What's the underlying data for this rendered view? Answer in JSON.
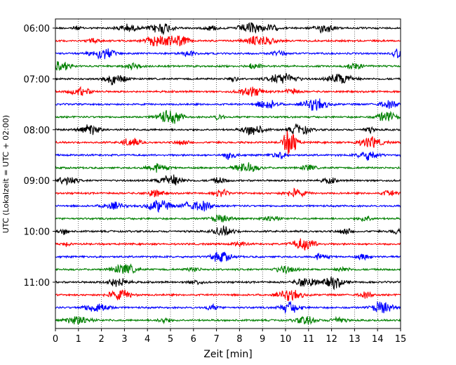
{
  "chart_data": {
    "type": "line",
    "title": "",
    "xlabel": "Zeit  [min]",
    "ylabel": "UTC (Lokalzeit = UTC + 02:00)",
    "xlim": [
      0,
      15
    ],
    "x_ticks": [
      0,
      1,
      2,
      3,
      4,
      5,
      6,
      7,
      8,
      9,
      10,
      11,
      12,
      13,
      14,
      15
    ],
    "x_tick_labels": [
      "0",
      "1",
      "2",
      "3",
      "4",
      "5",
      "6",
      "7",
      "8",
      "9",
      "10",
      "11",
      "12",
      "13",
      "14",
      "15"
    ],
    "y_tick_labels": [
      "06:00",
      "07:00",
      "08:00",
      "09:00",
      "10:00",
      "11:00"
    ],
    "row_minutes": 15,
    "grid": {
      "x": true,
      "style": "dotted"
    },
    "legend": "none",
    "colors": [
      "#000000",
      "#ff0000",
      "#0000ff",
      "#008000"
    ],
    "series": [
      {
        "start": "06:00",
        "bursts": [
          [
            0.9,
            0.15,
            0.3
          ],
          [
            3.1,
            0.3,
            0.6
          ],
          [
            4.6,
            0.35,
            1.0
          ],
          [
            6.8,
            0.2,
            0.4
          ],
          [
            8.5,
            0.35,
            1.0
          ],
          [
            9.4,
            0.2,
            0.5
          ],
          [
            11.7,
            0.25,
            0.8
          ]
        ]
      },
      {
        "start": "06:15",
        "bursts": [
          [
            4.5,
            0.4,
            1.0
          ],
          [
            5.4,
            0.25,
            0.9
          ],
          [
            8.9,
            0.4,
            0.9
          ],
          [
            1.7,
            0.2,
            0.4
          ]
        ]
      },
      {
        "start": "06:30",
        "bursts": [
          [
            2.0,
            0.35,
            1.0
          ],
          [
            5.8,
            0.2,
            0.5
          ],
          [
            9.7,
            0.2,
            0.4
          ],
          [
            14.9,
            0.15,
            0.8
          ]
        ]
      },
      {
        "start": "06:45",
        "bursts": [
          [
            0.2,
            0.3,
            0.8
          ],
          [
            3.4,
            0.25,
            0.5
          ],
          [
            8.6,
            0.2,
            0.5
          ],
          [
            13.0,
            0.25,
            0.5
          ]
        ]
      },
      {
        "start": "07:00",
        "bursts": [
          [
            2.6,
            0.3,
            0.9
          ],
          [
            7.7,
            0.15,
            0.5
          ],
          [
            9.9,
            0.4,
            1.0
          ],
          [
            12.4,
            0.35,
            1.0
          ]
        ]
      },
      {
        "start": "07:15",
        "bursts": [
          [
            1.1,
            0.3,
            0.7
          ],
          [
            8.5,
            0.35,
            0.8
          ],
          [
            10.3,
            0.2,
            0.5
          ]
        ]
      },
      {
        "start": "07:30",
        "bursts": [
          [
            9.2,
            0.3,
            0.8
          ],
          [
            11.3,
            0.35,
            1.0
          ],
          [
            14.5,
            0.3,
            0.6
          ]
        ]
      },
      {
        "start": "07:45",
        "bursts": [
          [
            4.8,
            0.3,
            1.0
          ],
          [
            5.3,
            0.2,
            0.7
          ],
          [
            14.4,
            0.3,
            0.9
          ],
          [
            7.1,
            0.15,
            0.5
          ]
        ]
      },
      {
        "start": "08:00",
        "bursts": [
          [
            1.5,
            0.3,
            0.9
          ],
          [
            8.6,
            0.3,
            1.0
          ],
          [
            10.6,
            0.3,
            0.9
          ],
          [
            13.6,
            0.15,
            0.5
          ]
        ]
      },
      {
        "start": "08:15",
        "bursts": [
          [
            3.3,
            0.25,
            0.8
          ],
          [
            10.2,
            0.2,
            2.5
          ],
          [
            13.7,
            0.35,
            0.9
          ],
          [
            5.5,
            0.2,
            0.4
          ]
        ]
      },
      {
        "start": "08:30",
        "bursts": [
          [
            7.6,
            0.2,
            0.7
          ],
          [
            9.7,
            0.2,
            0.6
          ],
          [
            13.6,
            0.3,
            0.8
          ]
        ]
      },
      {
        "start": "08:45",
        "bursts": [
          [
            4.4,
            0.3,
            0.7
          ],
          [
            8.3,
            0.35,
            0.9
          ],
          [
            11.0,
            0.2,
            0.5
          ]
        ]
      },
      {
        "start": "09:00",
        "bursts": [
          [
            0.5,
            0.3,
            0.7
          ],
          [
            5.0,
            0.35,
            1.0
          ],
          [
            7.1,
            0.2,
            0.5
          ],
          [
            11.9,
            0.2,
            0.5
          ]
        ]
      },
      {
        "start": "09:15",
        "bursts": [
          [
            4.3,
            0.25,
            0.6
          ],
          [
            7.2,
            0.2,
            0.6
          ],
          [
            10.4,
            0.3,
            0.7
          ],
          [
            14.5,
            0.2,
            0.5
          ]
        ]
      },
      {
        "start": "09:30",
        "bursts": [
          [
            2.5,
            0.3,
            0.6
          ],
          [
            4.5,
            0.35,
            1.0
          ],
          [
            6.4,
            0.3,
            0.8
          ],
          [
            5.8,
            0.2,
            0.6
          ]
        ]
      },
      {
        "start": "09:45",
        "bursts": [
          [
            7.2,
            0.3,
            0.6
          ],
          [
            9.4,
            0.25,
            0.5
          ],
          [
            13.5,
            0.2,
            0.5
          ]
        ]
      },
      {
        "start": "10:00",
        "bursts": [
          [
            0.4,
            0.15,
            0.5
          ],
          [
            7.3,
            0.3,
            0.8
          ],
          [
            12.6,
            0.2,
            0.5
          ],
          [
            14.8,
            0.15,
            0.5
          ]
        ]
      },
      {
        "start": "10:15",
        "bursts": [
          [
            10.8,
            0.35,
            1.0
          ],
          [
            0.5,
            0.1,
            0.4
          ],
          [
            8.0,
            0.2,
            0.4
          ]
        ]
      },
      {
        "start": "10:30",
        "bursts": [
          [
            7.2,
            0.3,
            0.9
          ],
          [
            11.5,
            0.2,
            0.5
          ],
          [
            13.4,
            0.2,
            0.5
          ]
        ]
      },
      {
        "start": "10:45",
        "bursts": [
          [
            3.0,
            0.35,
            0.9
          ],
          [
            10.0,
            0.3,
            0.6
          ],
          [
            12.5,
            0.2,
            0.4
          ],
          [
            6.0,
            0.2,
            0.4
          ]
        ]
      },
      {
        "start": "11:00",
        "bursts": [
          [
            2.7,
            0.3,
            0.8
          ],
          [
            10.9,
            0.3,
            1.0
          ],
          [
            12.1,
            0.3,
            1.0
          ],
          [
            6.1,
            0.2,
            0.4
          ]
        ]
      },
      {
        "start": "11:15",
        "bursts": [
          [
            2.8,
            0.35,
            0.8
          ],
          [
            10.2,
            0.35,
            0.9
          ],
          [
            13.5,
            0.2,
            0.5
          ]
        ]
      },
      {
        "start": "11:30",
        "bursts": [
          [
            1.8,
            0.35,
            0.9
          ],
          [
            10.2,
            0.3,
            0.9
          ],
          [
            14.2,
            0.3,
            1.0
          ],
          [
            6.8,
            0.2,
            0.4
          ]
        ]
      },
      {
        "start": "11:45",
        "bursts": [
          [
            1.0,
            0.35,
            0.8
          ],
          [
            10.9,
            0.3,
            0.7
          ],
          [
            12.3,
            0.2,
            0.6
          ],
          [
            4.7,
            0.2,
            0.4
          ]
        ]
      }
    ]
  }
}
